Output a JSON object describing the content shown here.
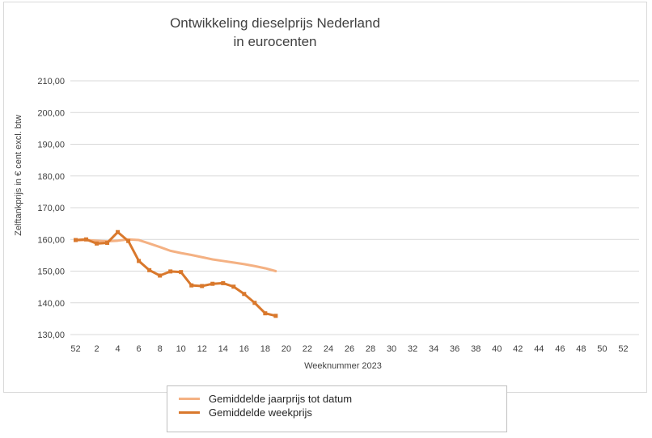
{
  "chart_data": {
    "type": "line",
    "title_lines": [
      "Ontwikkeling dieselprijs Nederland",
      "in eurocenten"
    ],
    "xlabel": "Weeknummer 2023",
    "ylabel": "Zelftankprijs in € cent excl. btw",
    "ylim": [
      130,
      210
    ],
    "y_ticks": [
      "130,00",
      "140,00",
      "150,00",
      "160,00",
      "170,00",
      "180,00",
      "190,00",
      "200,00",
      "210,00"
    ],
    "x_ticks": [
      "52",
      "2",
      "4",
      "6",
      "8",
      "10",
      "12",
      "14",
      "16",
      "18",
      "20",
      "22",
      "24",
      "26",
      "28",
      "30",
      "32",
      "34",
      "36",
      "38",
      "40",
      "42",
      "44",
      "46",
      "48",
      "50",
      "52"
    ],
    "x_categories": 54,
    "grid": "horizontal",
    "legend_position": "bottom",
    "series": [
      {
        "name": "Gemiddelde jaarprijs tot datum",
        "color": "#f4b183",
        "markers": false,
        "values": [
          159.7,
          159.8,
          159.6,
          159.4,
          159.6,
          160.0,
          159.8,
          158.7,
          157.6,
          156.4,
          155.7,
          155.1,
          154.4,
          153.7,
          153.2,
          152.7,
          152.2,
          151.6,
          150.9,
          150.0
        ]
      },
      {
        "name": "Gemiddelde weekprijs",
        "color": "#d9782c",
        "markers": true,
        "values": [
          159.8,
          160.0,
          158.7,
          158.9,
          162.3,
          159.5,
          153.2,
          150.3,
          148.6,
          149.9,
          149.7,
          145.5,
          145.3,
          146.0,
          146.2,
          145.1,
          142.8,
          140.0,
          136.7,
          135.9
        ]
      }
    ]
  }
}
